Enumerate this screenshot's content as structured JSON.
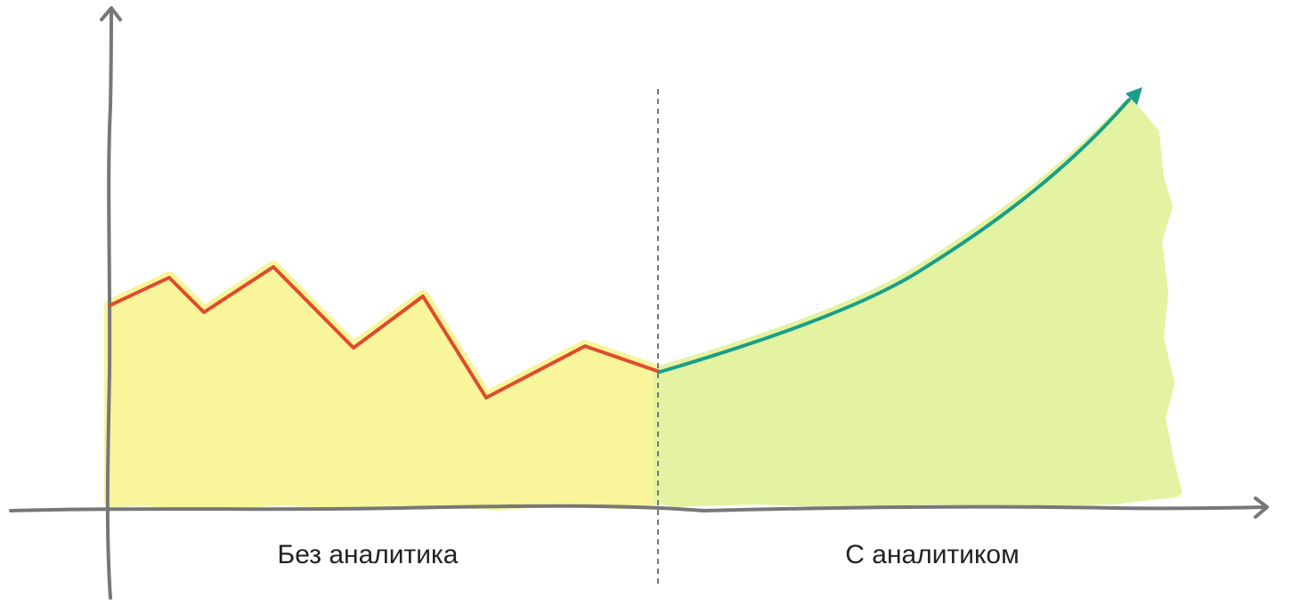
{
  "labels": {
    "left": "Без аналитика",
    "right": "С аналитиком"
  },
  "colors": {
    "axis": "#777777",
    "divider": "#777777",
    "left_fill": "#f8f59a",
    "right_fill": "#e3f3a1",
    "left_line": "#e04a2d",
    "right_line": "#1a9e87",
    "text": "#222222"
  },
  "icons": {
    "y_axis_arrow": "arrow-up-icon",
    "x_axis_arrow": "arrow-right-icon",
    "trend_arrow": "arrow-head-icon"
  }
}
